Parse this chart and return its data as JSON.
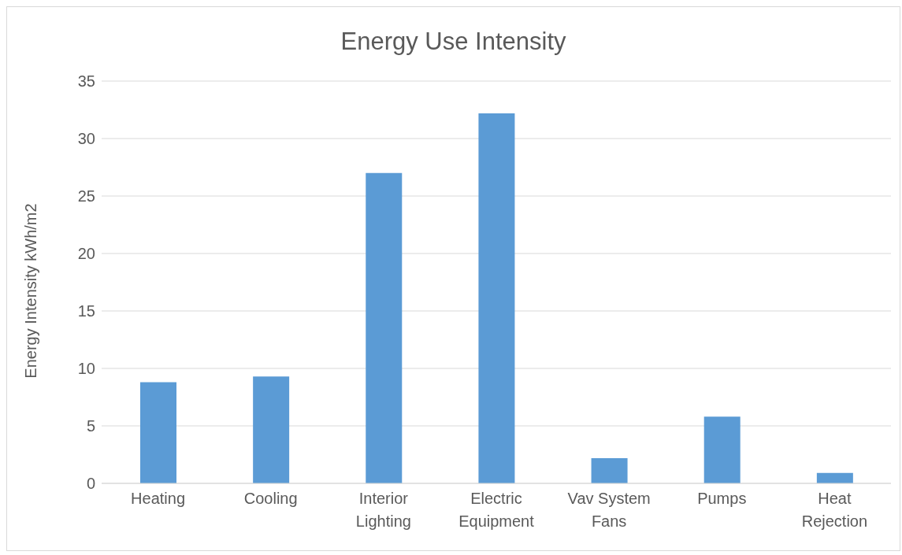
{
  "chart_data": {
    "type": "bar",
    "title": "Energy Use Intensity",
    "ylabel": "Energy Intensity kWh/m2",
    "categories": [
      "Heating",
      "Cooling",
      "Interior Lighting",
      "Electric Equipment",
      "Vav System Fans",
      "Pumps",
      "Heat Rejection"
    ],
    "values": [
      8.8,
      9.3,
      27.0,
      32.2,
      2.2,
      5.8,
      0.9
    ],
    "color": "#5b9bd5",
    "ylim": [
      0,
      35
    ],
    "yticks": [
      0,
      5,
      10,
      15,
      20,
      25,
      30,
      35
    ],
    "grid": "y"
  }
}
